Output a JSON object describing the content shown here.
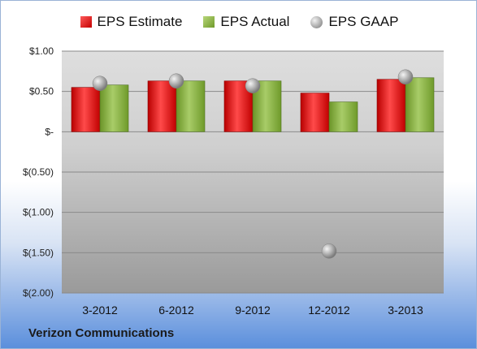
{
  "legend": {
    "estimate": "EPS Estimate",
    "actual": "EPS Actual",
    "gaap": "EPS GAAP"
  },
  "company": "Verizon Communications",
  "colors": {
    "estimate": "#d01818",
    "actual": "#8fb44a",
    "gaap": "#b0b0b0",
    "plot_bg_top": "#d9d9d9",
    "plot_bg_bottom": "#9e9e9e"
  },
  "chart_data": {
    "type": "bar",
    "categories": [
      "3-2012",
      "6-2012",
      "9-2012",
      "12-2012",
      "3-2013"
    ],
    "series": [
      {
        "name": "EPS Estimate",
        "values": [
          0.55,
          0.63,
          0.63,
          0.48,
          0.65
        ]
      },
      {
        "name": "EPS Actual",
        "values": [
          0.58,
          0.63,
          0.63,
          0.37,
          0.67
        ]
      },
      {
        "name": "EPS GAAP",
        "values": [
          0.6,
          0.63,
          0.57,
          -1.48,
          0.68
        ]
      }
    ],
    "ylim": [
      -2.0,
      1.0
    ],
    "yticks": [
      1.0,
      0.5,
      0.0,
      -0.5,
      -1.0,
      -1.5,
      -2.0
    ],
    "ytick_labels": [
      "$1.00",
      "$0.50",
      "$-",
      "$(0.50)",
      "$(1.00)",
      "$(1.50)",
      "$(2.00)"
    ],
    "grid": true,
    "legend_position": "top"
  }
}
